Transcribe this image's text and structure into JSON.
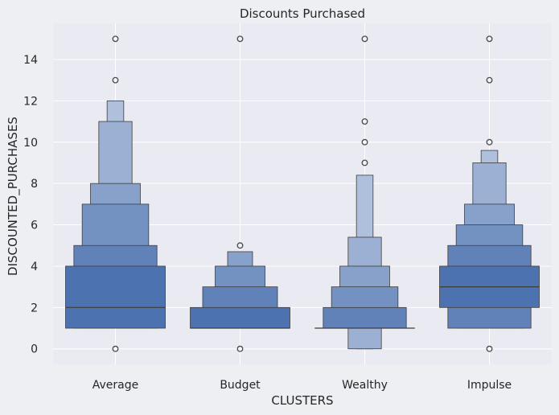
{
  "chart_data": {
    "type": "boxen",
    "title": "Discounts Purchased",
    "xlabel": "CLUSTERS",
    "ylabel": "DISCOUNTED_PURCHASES",
    "categories": [
      "Average",
      "Budget",
      "Wealthy",
      "Impulse"
    ],
    "yticks": [
      0,
      2,
      4,
      6,
      8,
      10,
      12,
      14
    ],
    "ylim": [
      -0.75,
      15.75
    ],
    "grid": true,
    "color": "#4c72b0",
    "groups": [
      {
        "category": "Average",
        "median": 2,
        "boxes": [
          {
            "lo": 1,
            "hi": 4
          },
          {
            "lo": 1,
            "hi": 5
          },
          {
            "lo": 1,
            "hi": 7
          },
          {
            "lo": 1,
            "hi": 8
          },
          {
            "lo": 1,
            "hi": 11
          },
          {
            "lo": 1,
            "hi": 12
          }
        ],
        "outliers": [
          0,
          13,
          15
        ]
      },
      {
        "category": "Budget",
        "median": 1,
        "boxes": [
          {
            "lo": 1,
            "hi": 2
          },
          {
            "lo": 1,
            "hi": 3
          },
          {
            "lo": 1,
            "hi": 4
          },
          {
            "lo": 1,
            "hi": 4.7
          }
        ],
        "outliers": [
          0,
          5,
          15
        ]
      },
      {
        "category": "Wealthy",
        "median": 1,
        "boxes": [
          {
            "lo": 1,
            "hi": 1
          },
          {
            "lo": 1,
            "hi": 2
          },
          {
            "lo": 1,
            "hi": 3
          },
          {
            "lo": 1,
            "hi": 4
          },
          {
            "lo": 0,
            "hi": 5.4
          },
          {
            "lo": 0,
            "hi": 8.4
          }
        ],
        "outliers": [
          9,
          10,
          11,
          15
        ]
      },
      {
        "category": "Impulse",
        "median": 3,
        "boxes": [
          {
            "lo": 2,
            "hi": 4
          },
          {
            "lo": 1,
            "hi": 5
          },
          {
            "lo": 1,
            "hi": 6
          },
          {
            "lo": 1,
            "hi": 7
          },
          {
            "lo": 1,
            "hi": 9
          },
          {
            "lo": 1,
            "hi": 9.6
          }
        ],
        "outliers": [
          0,
          10,
          13,
          15
        ]
      }
    ]
  }
}
